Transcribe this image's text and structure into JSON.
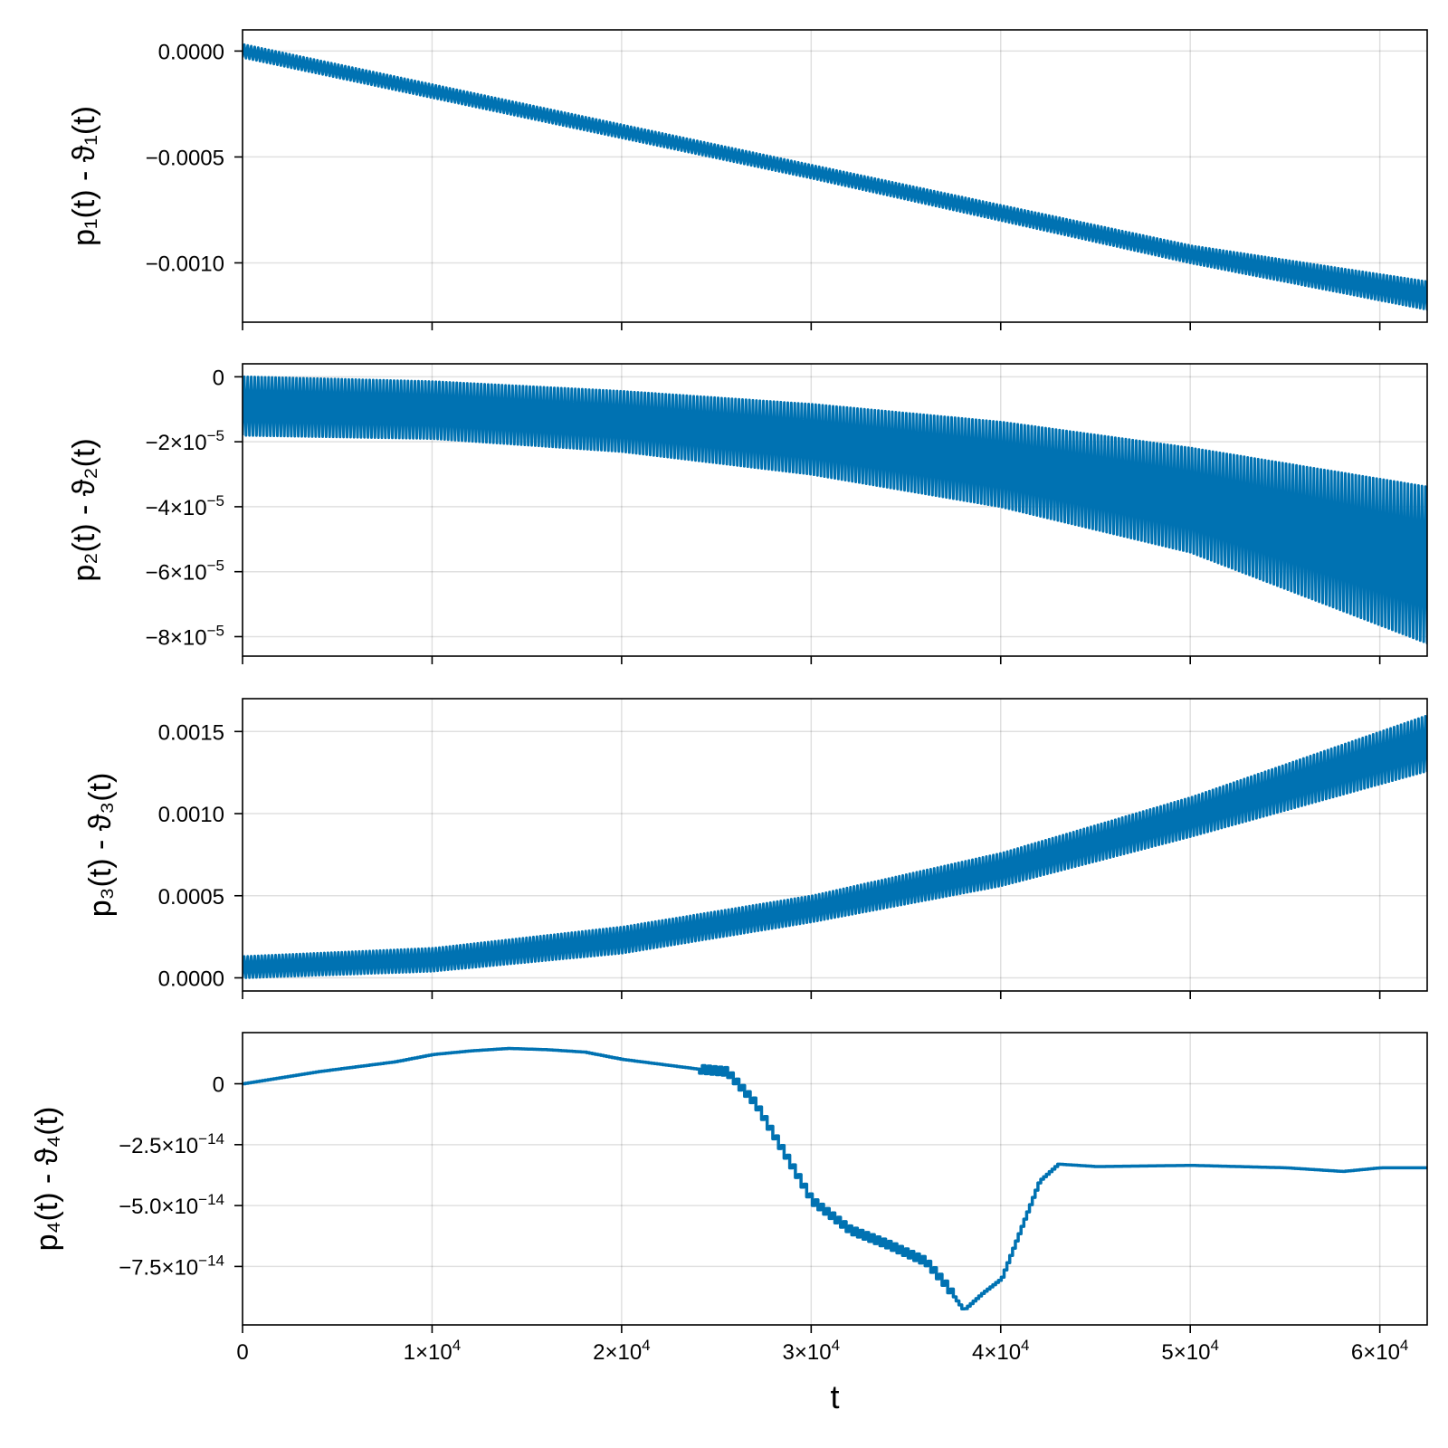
{
  "chart_data": [
    {
      "type": "line",
      "ylabel": "p₁(t) - ϑ₁(t)",
      "x_range": [
        0,
        62500
      ],
      "ylim": [
        -0.00128,
        0.0001
      ],
      "grid": true,
      "color": "#0072b2",
      "y_ticks": [
        {
          "value": 0.0,
          "label": "0.0000"
        },
        {
          "value": -0.0005,
          "label": "−0.0005"
        },
        {
          "value": -0.001,
          "label": "−0.0010"
        }
      ],
      "envelope": {
        "x": [
          0,
          10000,
          20000,
          30000,
          40000,
          50000,
          62500
        ],
        "upper": [
          3e-05,
          -0.00016,
          -0.00035,
          -0.00054,
          -0.00073,
          -0.00092,
          -0.00109
        ],
        "lower": [
          -3e-05,
          -0.00022,
          -0.00041,
          -0.0006,
          -0.0008,
          -0.001,
          -0.00122
        ]
      },
      "oscillating": true
    },
    {
      "type": "line",
      "ylabel": "p₂(t) - ϑ₂(t)",
      "x_range": [
        0,
        62500
      ],
      "ylim": [
        -8.6e-05,
        4e-06
      ],
      "grid": true,
      "color": "#0072b2",
      "y_ticks": [
        {
          "value": 0,
          "label": "0",
          "exp": ""
        },
        {
          "value": -2e-05,
          "label": "−2×10",
          "exp": "−5"
        },
        {
          "value": -4e-05,
          "label": "−4×10",
          "exp": "−5"
        },
        {
          "value": -6e-05,
          "label": "−6×10",
          "exp": "−5"
        },
        {
          "value": -8e-05,
          "label": "−8×10",
          "exp": "−5"
        }
      ],
      "envelope": {
        "x": [
          0,
          10000,
          20000,
          30000,
          40000,
          50000,
          62500
        ],
        "upper": [
          0,
          -1.5e-06,
          -4.5e-06,
          -8.5e-06,
          -1.4e-05,
          -2.2e-05,
          -3.4e-05
        ],
        "lower": [
          -1.8e-05,
          -1.9e-05,
          -2.3e-05,
          -3e-05,
          -4e-05,
          -5.4e-05,
          -8.2e-05
        ]
      },
      "oscillating": true
    },
    {
      "type": "line",
      "ylabel": "p₃(t) - ϑ₃(t)",
      "x_range": [
        0,
        62500
      ],
      "ylim": [
        -8e-05,
        0.0017
      ],
      "grid": true,
      "color": "#0072b2",
      "y_ticks": [
        {
          "value": 0.0015,
          "label": "0.0015"
        },
        {
          "value": 0.001,
          "label": "0.0010"
        },
        {
          "value": 0.0005,
          "label": "0.0005"
        },
        {
          "value": 0.0,
          "label": "0.0000"
        }
      ],
      "envelope": {
        "x": [
          0,
          10000,
          20000,
          30000,
          40000,
          50000,
          62500
        ],
        "upper": [
          0.00013,
          0.00018,
          0.00031,
          0.0005,
          0.00076,
          0.0011,
          0.0016
        ],
        "lower": [
          0.0,
          4e-05,
          0.00015,
          0.00034,
          0.00056,
          0.00086,
          0.00126
        ]
      },
      "oscillating": true
    },
    {
      "type": "line",
      "ylabel": "p₄(t) - ϑ₄(t)",
      "xlabel": "t",
      "x_range": [
        0,
        62500
      ],
      "ylim": [
        -9.9e-14,
        2.1e-14
      ],
      "grid": true,
      "color": "#0072b2",
      "y_ticks": [
        {
          "value": 0,
          "label": "0",
          "exp": ""
        },
        {
          "value": -2.5e-14,
          "label": "−2.5×10",
          "exp": "−14"
        },
        {
          "value": -5e-14,
          "label": "−5.0×10",
          "exp": "−14"
        },
        {
          "value": -7.5e-14,
          "label": "−7.5×10",
          "exp": "−14"
        }
      ],
      "x_ticks": [
        {
          "value": 0,
          "label": "0",
          "exp": ""
        },
        {
          "value": 10000,
          "label": "1×10",
          "exp": "4"
        },
        {
          "value": 20000,
          "label": "2×10",
          "exp": "4"
        },
        {
          "value": 30000,
          "label": "3×10",
          "exp": "4"
        },
        {
          "value": 40000,
          "label": "4×10",
          "exp": "4"
        },
        {
          "value": 50000,
          "label": "5×10",
          "exp": "4"
        },
        {
          "value": 60000,
          "label": "6×10",
          "exp": "4"
        }
      ],
      "series": {
        "x": [
          0,
          2000,
          4000,
          6000,
          8000,
          10000,
          12000,
          14000,
          16000,
          18000,
          20000,
          22000,
          24000,
          25500,
          27000,
          28500,
          30000,
          32000,
          34000,
          36000,
          37000,
          38000,
          39000,
          40000,
          41000,
          42000,
          43000,
          45000,
          50000,
          55000,
          58000,
          60000,
          62500
        ],
        "y": [
          0,
          2.5e-15,
          5e-15,
          7e-15,
          9e-15,
          1.2e-14,
          1.35e-14,
          1.45e-14,
          1.4e-14,
          1.3e-14,
          1e-14,
          8e-15,
          6e-15,
          5e-15,
          -8e-15,
          -2.8e-14,
          -4.8e-14,
          -6e-14,
          -6.6e-14,
          -7.3e-14,
          -8.2e-14,
          -9.3e-14,
          -8.6e-14,
          -8e-14,
          -6e-14,
          -4e-14,
          -3.3e-14,
          -3.4e-14,
          -3.35e-14,
          -3.45e-14,
          -3.6e-14,
          -3.45e-14,
          -3.45e-14
        ]
      },
      "oscillating": false
    }
  ]
}
